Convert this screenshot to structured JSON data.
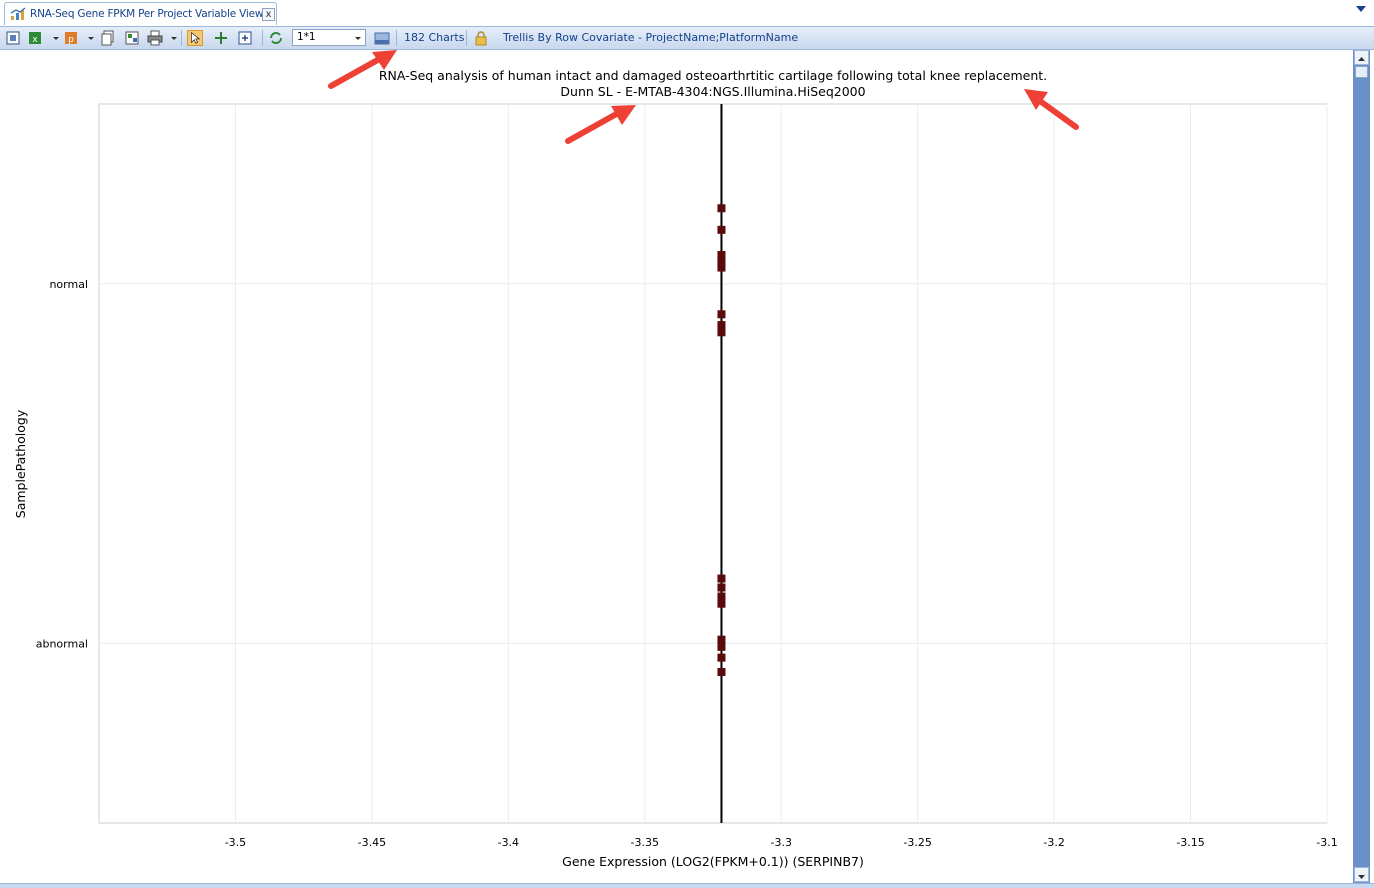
{
  "window": {
    "tab_title": "RNA-Seq Gene FPKM Per Project Variable View",
    "tab_close_glyph": "x"
  },
  "toolbar": {
    "combo_value": "1*1",
    "charts_count_label": "182 Charts",
    "trellis_label": "Trellis By Row Covariate - ProjectName;PlatformName",
    "icons": [
      "fit-chart-icon",
      "export-excel-icon",
      "export-ppt-icon",
      "copy-icon",
      "copy-all-icon",
      "print-icon",
      "pointer-icon",
      "pan-icon",
      "zoom-fit-icon",
      "refresh-icon",
      "layout-icon",
      "lock-icon"
    ]
  },
  "chart_data": {
    "type": "scatter",
    "title": "RNA-Seq analysis of human intact and damaged osteoarthrtitic cartilage following total knee replacement.",
    "subtitle": "Dunn SL - E-MTAB-4304:NGS.Illumina.HiSeq2000",
    "xlabel": "Gene Expression (LOG2(FPKM+0.1)) (SERPINB7)",
    "ylabel": "SamplePathology",
    "xlim": [
      -3.55,
      -3.1
    ],
    "xticks": [
      -3.5,
      -3.45,
      -3.4,
      -3.35,
      -3.3,
      -3.25,
      -3.2,
      -3.15,
      -3.1
    ],
    "xtick_labels": [
      "-3.5",
      "-3.45",
      "-3.4",
      "-3.35",
      "-3.3",
      "-3.25",
      "-3.2",
      "-3.15",
      "-3.1"
    ],
    "categories": [
      "normal",
      "abnormal"
    ],
    "grid": true,
    "marker_color": "#5a0a0a",
    "line_color": "#000000",
    "series": [
      {
        "category": "normal",
        "x": -3.3219,
        "point_offsets": [
          -0.42,
          -0.3,
          -0.16,
          -0.12,
          -0.09,
          0.17,
          0.23,
          0.27
        ],
        "whisker": [
          -1,
          1
        ]
      },
      {
        "category": "abnormal",
        "x": -3.3219,
        "point_offsets": [
          -0.36,
          -0.31,
          -0.26,
          -0.22,
          -0.02,
          0.02,
          0.08,
          0.16
        ],
        "whisker": [
          -1,
          1
        ]
      }
    ]
  },
  "annotations": {
    "arrow_color": "#ee4034"
  }
}
